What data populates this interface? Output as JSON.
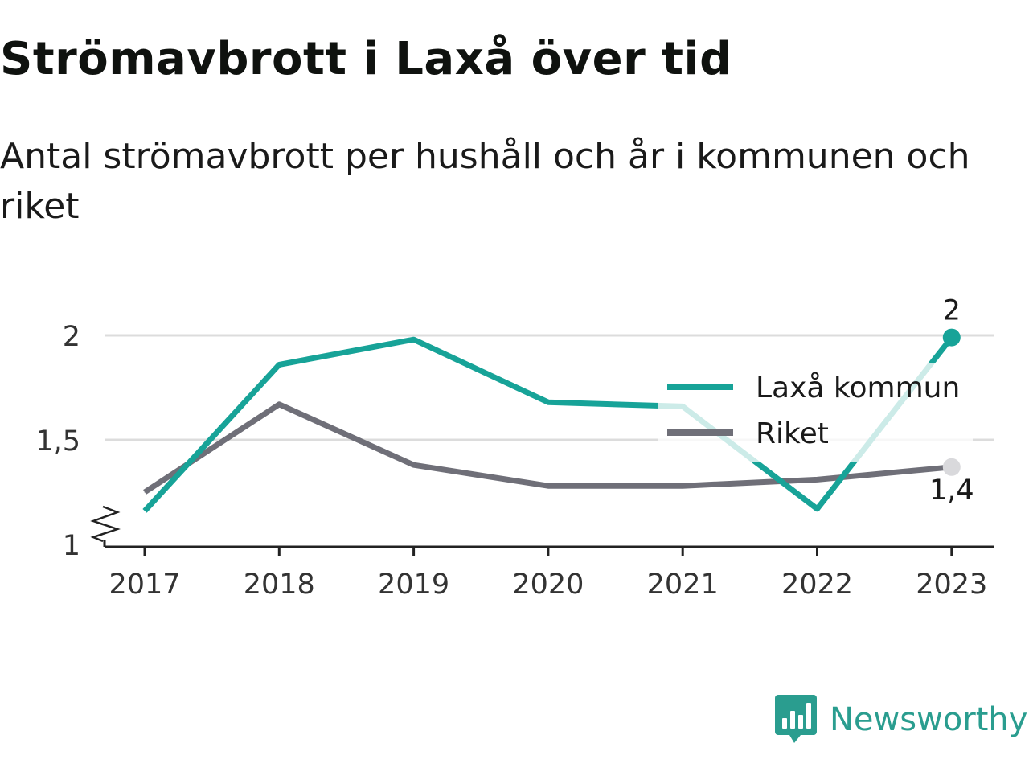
{
  "colors": {
    "laxa": "#17a398",
    "riket": "#6f6f78",
    "grid": "#dcdcdc",
    "axis": "#222222",
    "brand": "#2a9d8f"
  },
  "brand": {
    "name": "Newsworthy",
    "icon": "newsworthy-logo-icon"
  },
  "chart_data": {
    "type": "line",
    "title": "Strömavbrott i Laxå över tid",
    "subtitle": "Antal strömavbrott per hushåll och år i kommunen och riket",
    "xlabel": "",
    "ylabel": "",
    "categories": [
      "2017",
      "2018",
      "2019",
      "2020",
      "2021",
      "2022",
      "2023"
    ],
    "ylim": [
      1,
      2.05
    ],
    "yticks": [
      1,
      1.5,
      2
    ],
    "ytick_labels": [
      "1",
      "1,5",
      "2"
    ],
    "axis_break": true,
    "grid": true,
    "legend_position": "right",
    "series": [
      {
        "name": "Laxå kommun",
        "color": "#17a398",
        "values": [
          1.16,
          1.86,
          1.98,
          1.68,
          1.66,
          1.17,
          1.99
        ],
        "end_label": "2"
      },
      {
        "name": "Riket",
        "color": "#6f6f78",
        "values": [
          1.25,
          1.67,
          1.38,
          1.28,
          1.28,
          1.31,
          1.37
        ],
        "end_label": "1,4"
      }
    ]
  }
}
